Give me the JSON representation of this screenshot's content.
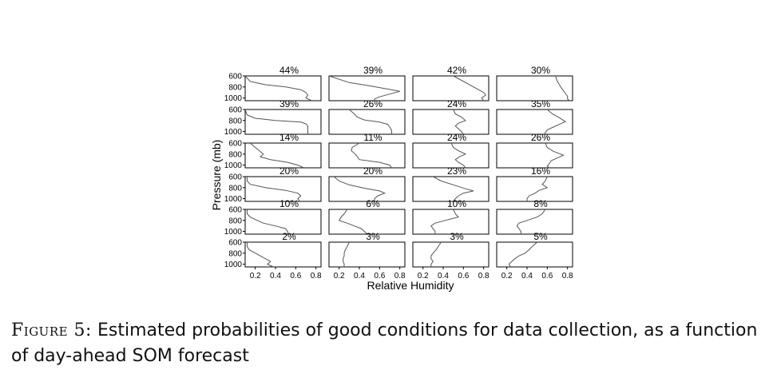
{
  "chart_data": {
    "type": "line",
    "layout_grid": {
      "rows": 6,
      "cols": 4
    },
    "xlabel": "Relative Humidity",
    "ylabel": "Pressure (mb)",
    "xlim": [
      0.1,
      0.85
    ],
    "ylim": [
      600,
      1050
    ],
    "y_inverted": true,
    "x_ticks": [
      "0.2",
      "0.4",
      "0.6",
      "0.8"
    ],
    "x_tick_values": [
      0.2,
      0.4,
      0.6,
      0.8
    ],
    "y_ticks": [
      "600",
      "800",
      "1000"
    ],
    "y_tick_values": [
      600,
      800,
      1000
    ],
    "grid": false,
    "line_color": "#555555",
    "panels": [
      {
        "label": "44%",
        "x": [
          0.1,
          0.15,
          0.3,
          0.5,
          0.65,
          0.7,
          0.72,
          0.7,
          0.76
        ],
        "y": [
          600,
          700,
          760,
          800,
          850,
          900,
          950,
          1000,
          1050
        ]
      },
      {
        "label": "39%",
        "x": [
          0.1,
          0.3,
          0.5,
          0.65,
          0.8,
          0.7,
          0.6,
          0.55,
          0.55
        ],
        "y": [
          600,
          720,
          780,
          830,
          880,
          930,
          980,
          1020,
          1050
        ]
      },
      {
        "label": "42%",
        "x": [
          0.5,
          0.58,
          0.64,
          0.7,
          0.75,
          0.8,
          0.82,
          0.78,
          0.8
        ],
        "y": [
          600,
          680,
          740,
          800,
          850,
          900,
          950,
          1000,
          1050
        ]
      },
      {
        "label": "30%",
        "x": [
          0.68,
          0.7,
          0.72,
          0.74,
          0.76,
          0.78,
          0.8,
          0.8,
          0.82
        ],
        "y": [
          600,
          700,
          760,
          820,
          870,
          920,
          970,
          1020,
          1050
        ]
      },
      {
        "label": "39%",
        "x": [
          0.1,
          0.12,
          0.2,
          0.4,
          0.65,
          0.7,
          0.72,
          0.72,
          0.72
        ],
        "y": [
          600,
          700,
          760,
          800,
          830,
          860,
          900,
          950,
          1050
        ]
      },
      {
        "label": "26%",
        "x": [
          0.3,
          0.35,
          0.38,
          0.45,
          0.6,
          0.68,
          0.7,
          0.72,
          0.72
        ],
        "y": [
          600,
          680,
          740,
          790,
          830,
          870,
          920,
          980,
          1050
        ]
      },
      {
        "label": "24%",
        "x": [
          0.5,
          0.52,
          0.58,
          0.62,
          0.55,
          0.52,
          0.55,
          0.58,
          0.6
        ],
        "y": [
          600,
          680,
          740,
          800,
          850,
          900,
          950,
          1000,
          1050
        ]
      },
      {
        "label": "35%",
        "x": [
          0.6,
          0.65,
          0.72,
          0.78,
          0.72,
          0.66,
          0.6,
          0.58,
          0.58
        ],
        "y": [
          600,
          680,
          750,
          820,
          870,
          920,
          970,
          1020,
          1050
        ]
      },
      {
        "label": "14%",
        "x": [
          0.15,
          0.2,
          0.24,
          0.28,
          0.25,
          0.35,
          0.52,
          0.62,
          0.68
        ],
        "y": [
          600,
          680,
          740,
          800,
          850,
          900,
          950,
          1000,
          1050
        ]
      },
      {
        "label": "11%",
        "x": [
          0.4,
          0.33,
          0.32,
          0.36,
          0.38,
          0.4,
          0.6,
          0.7,
          0.72
        ],
        "y": [
          600,
          680,
          740,
          800,
          850,
          900,
          950,
          1000,
          1050
        ]
      },
      {
        "label": "24%",
        "x": [
          0.48,
          0.5,
          0.55,
          0.62,
          0.56,
          0.52,
          0.55,
          0.6,
          0.62
        ],
        "y": [
          600,
          680,
          740,
          800,
          850,
          900,
          950,
          1000,
          1050
        ]
      },
      {
        "label": "26%",
        "x": [
          0.58,
          0.6,
          0.66,
          0.76,
          0.7,
          0.64,
          0.62,
          0.6,
          0.62
        ],
        "y": [
          600,
          680,
          750,
          820,
          870,
          920,
          970,
          1020,
          1050
        ]
      },
      {
        "label": "20%",
        "x": [
          0.12,
          0.12,
          0.15,
          0.3,
          0.5,
          0.62,
          0.65,
          0.62,
          0.64
        ],
        "y": [
          600,
          680,
          740,
          800,
          850,
          900,
          950,
          1000,
          1050
        ]
      },
      {
        "label": "20%",
        "x": [
          0.15,
          0.2,
          0.3,
          0.45,
          0.6,
          0.65,
          0.58,
          0.55,
          0.55
        ],
        "y": [
          600,
          680,
          750,
          810,
          860,
          900,
          950,
          1000,
          1050
        ]
      },
      {
        "label": "23%",
        "x": [
          0.3,
          0.38,
          0.5,
          0.62,
          0.7,
          0.6,
          0.55,
          0.52,
          0.5
        ],
        "y": [
          600,
          680,
          750,
          820,
          860,
          900,
          950,
          1000,
          1050
        ]
      },
      {
        "label": "16%",
        "x": [
          0.6,
          0.58,
          0.55,
          0.6,
          0.52,
          0.48,
          0.42,
          0.4,
          0.4
        ],
        "y": [
          600,
          680,
          740,
          800,
          850,
          900,
          950,
          1000,
          1050
        ]
      },
      {
        "label": "10%",
        "x": [
          0.12,
          0.12,
          0.15,
          0.22,
          0.28,
          0.4,
          0.5,
          0.52,
          0.52
        ],
        "y": [
          600,
          680,
          740,
          800,
          850,
          900,
          950,
          1000,
          1050
        ]
      },
      {
        "label": "6%",
        "x": [
          0.28,
          0.25,
          0.22,
          0.2,
          0.28,
          0.35,
          0.42,
          0.45,
          0.48
        ],
        "y": [
          600,
          680,
          740,
          800,
          850,
          900,
          950,
          1000,
          1050
        ]
      },
      {
        "label": "10%",
        "x": [
          0.5,
          0.52,
          0.55,
          0.42,
          0.32,
          0.28,
          0.3,
          0.32,
          0.32
        ],
        "y": [
          600,
          680,
          740,
          800,
          850,
          900,
          950,
          1000,
          1050
        ]
      },
      {
        "label": "8%",
        "x": [
          0.58,
          0.55,
          0.5,
          0.4,
          0.32,
          0.3,
          0.32,
          0.34,
          0.34
        ],
        "y": [
          600,
          680,
          740,
          800,
          850,
          900,
          950,
          1000,
          1050
        ]
      },
      {
        "label": "2%",
        "x": [
          0.12,
          0.12,
          0.14,
          0.2,
          0.25,
          0.3,
          0.35,
          0.32,
          0.38
        ],
        "y": [
          600,
          680,
          740,
          800,
          850,
          900,
          950,
          1000,
          1050
        ]
      },
      {
        "label": "3%",
        "x": [
          0.3,
          0.28,
          0.26,
          0.25,
          0.25,
          0.24,
          0.24,
          0.25,
          0.25
        ],
        "y": [
          600,
          680,
          740,
          800,
          850,
          900,
          950,
          1000,
          1050
        ]
      },
      {
        "label": "3%",
        "x": [
          0.38,
          0.35,
          0.33,
          0.3,
          0.28,
          0.28,
          0.3,
          0.28,
          0.28
        ],
        "y": [
          600,
          680,
          740,
          800,
          850,
          900,
          950,
          1000,
          1050
        ]
      },
      {
        "label": "5%",
        "x": [
          0.5,
          0.45,
          0.42,
          0.38,
          0.32,
          0.28,
          0.25,
          0.22,
          0.24
        ],
        "y": [
          600,
          680,
          740,
          800,
          850,
          900,
          950,
          1000,
          1050
        ]
      }
    ]
  },
  "caption": {
    "figure_label": "Figure 5:",
    "text": "Estimated probabilities of good conditions for data collection, as a function of day-ahead SOM forecast"
  }
}
